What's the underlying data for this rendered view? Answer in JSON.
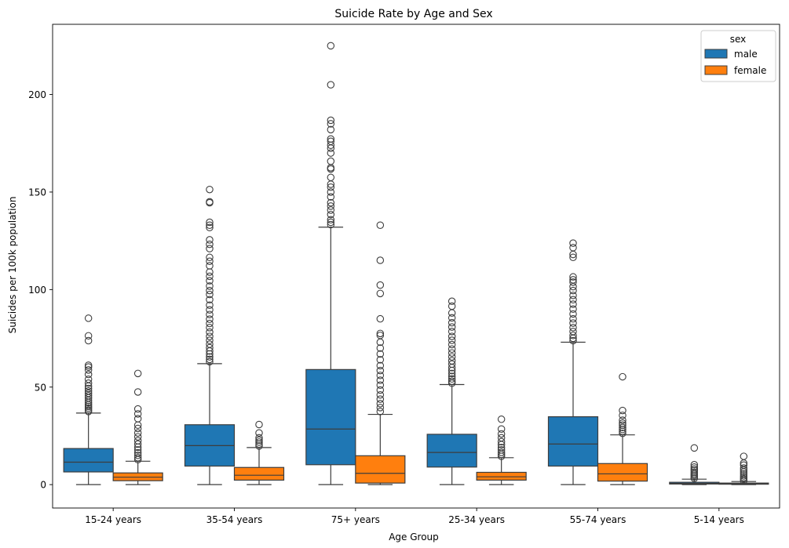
{
  "chart_data": {
    "type": "boxplot",
    "title": "Suicide Rate by Age and Sex",
    "xlabel": "Age Group",
    "ylabel": "Suicides per 100k population",
    "ylim": [
      -12,
      236
    ],
    "yticks": [
      0,
      50,
      100,
      150,
      200
    ],
    "grid": false,
    "legend": {
      "title": "sex",
      "placement": "top-right"
    },
    "categories": [
      "15-24 years",
      "35-54 years",
      "75+ years",
      "25-34 years",
      "55-74 years",
      "5-14 years"
    ],
    "series": [
      {
        "name": "male",
        "color": "#1f77b4",
        "stats": [
          {
            "min": 0,
            "q1": 6.5,
            "median": 11.5,
            "q3": 18.5,
            "whisker_high": 36.7,
            "outliers": [
              37.5,
              38.3,
              39.2,
              40.1,
              41.0,
              42.1,
              43.2,
              44.5,
              45.6,
              46.8,
              48.0,
              49.3,
              50.5,
              52.0,
              54.0,
              56.5,
              58.8,
              60.3,
              61.2,
              73.8,
              76.3,
              85.3
            ]
          },
          {
            "min": 0,
            "q1": 9.5,
            "median": 20.0,
            "q3": 30.7,
            "whisker_high": 62.0,
            "outliers": [
              63.0,
              64.2,
              65.5,
              67.0,
              68.5,
              70.2,
              72.0,
              74.0,
              76.0,
              78.2,
              80.5,
              82.6,
              84.8,
              87.2,
              89.6,
              92.0,
              94.8,
              97.5,
              99.5,
              101.8,
              104.5,
              106.8,
              109.0,
              112.2,
              114.5,
              116.5,
              121.0,
              123.2,
              125.5,
              131.8,
              133.0,
              134.5,
              144.5,
              145.0,
              151.3
            ]
          },
          {
            "min": 0,
            "q1": 10.2,
            "median": 28.5,
            "q3": 59.0,
            "whisker_high": 132.0,
            "outliers": [
              133.3,
              134.5,
              135.8,
              138.5,
              140.8,
              142.8,
              144.5,
              147.5,
              150.0,
              152.5,
              154.0,
              157.5,
              161.8,
              162.5,
              165.8,
              170.0,
              172.5,
              174.0,
              176.0,
              177.2,
              182.0,
              185.0,
              186.8,
              205.0,
              225.0
            ]
          },
          {
            "min": 0,
            "q1": 9.0,
            "median": 16.5,
            "q3": 25.8,
            "whisker_high": 51.3,
            "outliers": [
              52.0,
              53.0,
              54.2,
              55.5,
              57.0,
              58.5,
              60.0,
              61.8,
              63.5,
              65.5,
              67.5,
              69.5,
              71.8,
              74.0,
              76.0,
              78.5,
              80.8,
              83.0,
              85.5,
              88.0,
              91.5,
              94.0
            ]
          },
          {
            "min": 0,
            "q1": 9.5,
            "median": 20.8,
            "q3": 34.8,
            "whisker_high": 73.0,
            "outliers": [
              73.8,
              75.0,
              76.5,
              78.5,
              80.5,
              82.8,
              85.0,
              87.5,
              90.0,
              92.5,
              94.8,
              97.0,
              99.5,
              101.5,
              103.8,
              105.0,
              106.5,
              116.5,
              118.0,
              121.5,
              123.8
            ]
          },
          {
            "min": 0,
            "q1": 0.3,
            "median": 0.6,
            "q3": 1.2,
            "whisker_high": 2.8,
            "outliers": [
              3.2,
              4.0,
              4.8,
              5.5,
              6.3,
              7.2,
              8.0,
              9.0,
              10.2,
              18.8
            ]
          }
        ]
      },
      {
        "name": "female",
        "color": "#ff7f0e",
        "stats": [
          {
            "min": 0,
            "q1": 2.0,
            "median": 3.8,
            "q3": 6.0,
            "whisker_high": 12.0,
            "outliers": [
              12.8,
              13.8,
              15.0,
              16.3,
              17.8,
              19.2,
              20.8,
              22.5,
              24.5,
              26.5,
              28.8,
              30.5,
              33.8,
              36.3,
              38.8,
              47.5,
              57.0
            ]
          },
          {
            "min": 0,
            "q1": 2.3,
            "median": 4.8,
            "q3": 8.8,
            "whisker_high": 19.0,
            "outliers": [
              19.8,
              20.8,
              21.8,
              22.8,
              24.0,
              26.5,
              30.8
            ]
          },
          {
            "min": 0,
            "q1": 0.8,
            "median": 5.8,
            "q3": 14.8,
            "whisker_high": 36.0,
            "outliers": [
              37.5,
              39.5,
              41.5,
              43.8,
              46.0,
              48.5,
              51.0,
              53.5,
              56.0,
              58.5,
              61.0,
              64.0,
              67.0,
              70.0,
              73.0,
              76.5,
              77.5,
              85.0,
              98.0,
              102.3,
              115.0,
              133.0
            ]
          },
          {
            "min": 0,
            "q1": 2.3,
            "median": 4.0,
            "q3": 6.3,
            "whisker_high": 13.8,
            "outliers": [
              14.5,
              15.5,
              16.5,
              17.8,
              19.0,
              20.5,
              22.0,
              24.0,
              26.0,
              28.5,
              33.5
            ]
          },
          {
            "min": 0,
            "q1": 1.8,
            "median": 5.5,
            "q3": 10.8,
            "whisker_high": 25.5,
            "outliers": [
              26.3,
              27.3,
              28.3,
              29.3,
              30.5,
              31.5,
              33.0,
              35.5,
              38.0,
              55.3
            ]
          },
          {
            "min": 0,
            "q1": 0.2,
            "median": 0.4,
            "q3": 0.8,
            "whisker_high": 1.6,
            "outliers": [
              2.0,
              2.8,
              3.6,
              4.5,
              5.5,
              6.5,
              7.5,
              8.5,
              10.0,
              11.0,
              14.5
            ]
          }
        ]
      }
    ]
  }
}
